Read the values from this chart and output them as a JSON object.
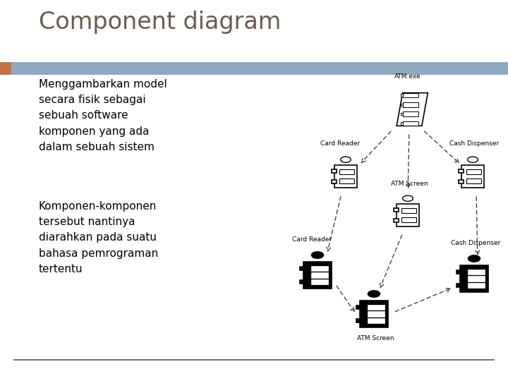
{
  "title": "Component diagram",
  "title_color": "#6b5b4e",
  "title_fontsize": 24,
  "bg_color": "#ffffff",
  "header_bar_color": "#8fa8c0",
  "left_accent_color": "#c0724a",
  "text1": "Menggambarkan model\nsecara fisik sebagai\nsebuah software\nkomponen yang ada\ndalam sebuah sistem",
  "text2": "Komponen-komponen\ntersebut nantinya\ndiarahkan pada suatu\nbahasa pemrograman\ntertentu",
  "text_fontsize": 11,
  "bottom_line_color": "#555555"
}
